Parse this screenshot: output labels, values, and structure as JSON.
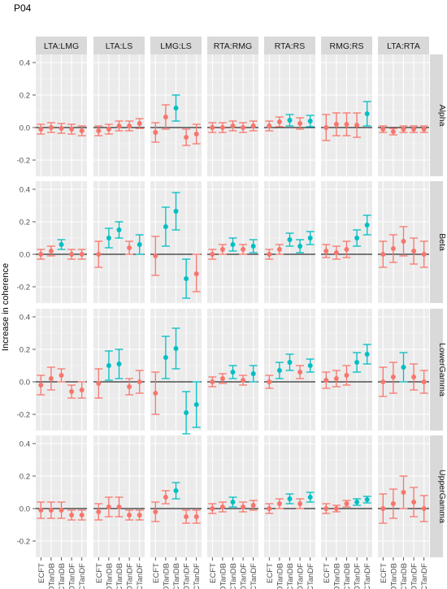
{
  "chart_data": {
    "type": "scatter",
    "title": "P04",
    "ylabel": "Increase in coherence",
    "xlabel": "",
    "ylim": [
      -0.3,
      0.45
    ],
    "yticks": [
      -0.2,
      0.0,
      0.2,
      0.4
    ],
    "ytick_labels": [
      "-0.2",
      "0.0",
      "0.2",
      "0.4"
    ],
    "categories": [
      "ECFT",
      "EOTanDB",
      "ECTanDB",
      "EOTanDF",
      "ECTanDF"
    ],
    "columns": [
      "LTA:LMG",
      "LTA:LS",
      "LMG:LS",
      "RTA:RMG",
      "RTA:RS",
      "RMG:RS",
      "LTA:RTA"
    ],
    "rows": [
      "Alpha",
      "Beta",
      "LowerGamma",
      "UpperGamma"
    ],
    "colors": {
      "not_significant": "#f8766d",
      "significant": "#00bfc4",
      "panel_bg": "#ebebeb",
      "strip_bg": "#d9d9d9",
      "zero_line": "#000000"
    },
    "grid": true,
    "legend": "none",
    "panels": [
      [
        {
          "est": [
            -0.01,
            0.0,
            -0.005,
            -0.01,
            -0.02
          ],
          "lo": [
            -0.04,
            -0.03,
            -0.035,
            -0.04,
            -0.05
          ],
          "hi": [
            0.02,
            0.03,
            0.025,
            0.02,
            0.01
          ],
          "sig": [
            0,
            0,
            0,
            0,
            0
          ]
        },
        {
          "est": [
            -0.02,
            -0.01,
            0.01,
            0.01,
            0.025
          ],
          "lo": [
            -0.05,
            -0.04,
            -0.02,
            -0.02,
            -0.005
          ],
          "hi": [
            0.01,
            0.02,
            0.04,
            0.04,
            0.055
          ],
          "sig": [
            0,
            0,
            0,
            0,
            0
          ]
        },
        {
          "est": [
            -0.03,
            0.065,
            0.12,
            -0.06,
            -0.04
          ],
          "lo": [
            -0.09,
            -0.01,
            0.04,
            -0.11,
            -0.1
          ],
          "hi": [
            0.03,
            0.14,
            0.2,
            -0.01,
            0.02
          ],
          "sig": [
            0,
            0,
            1,
            0,
            0
          ]
        },
        {
          "est": [
            0.0,
            0.0,
            0.01,
            0.0,
            0.01
          ],
          "lo": [
            -0.03,
            -0.03,
            -0.02,
            -0.03,
            -0.02
          ],
          "hi": [
            0.03,
            0.03,
            0.04,
            0.03,
            0.04
          ],
          "sig": [
            0,
            0,
            0,
            0,
            0
          ]
        },
        {
          "est": [
            0.01,
            0.035,
            0.045,
            0.025,
            0.04
          ],
          "lo": [
            -0.02,
            0.005,
            0.01,
            -0.01,
            0.005
          ],
          "hi": [
            0.04,
            0.065,
            0.08,
            0.06,
            0.075
          ],
          "sig": [
            0,
            0,
            1,
            0,
            1
          ]
        },
        {
          "est": [
            0.0,
            0.02,
            0.02,
            0.015,
            0.085
          ],
          "lo": [
            -0.08,
            -0.05,
            -0.05,
            -0.06,
            0.01
          ],
          "hi": [
            0.08,
            0.09,
            0.09,
            0.09,
            0.16
          ],
          "sig": [
            0,
            0,
            0,
            0,
            1
          ]
        },
        {
          "est": [
            -0.01,
            -0.025,
            -0.01,
            -0.01,
            -0.01
          ],
          "lo": [
            -0.03,
            -0.045,
            -0.03,
            -0.03,
            -0.03
          ],
          "hi": [
            0.01,
            -0.005,
            0.01,
            0.01,
            0.01
          ],
          "sig": [
            0,
            0,
            0,
            0,
            0
          ]
        }
      ],
      [
        {
          "est": [
            0.0,
            0.02,
            0.06,
            0.0,
            0.0
          ],
          "lo": [
            -0.03,
            -0.01,
            0.03,
            -0.03,
            -0.03
          ],
          "hi": [
            0.03,
            0.05,
            0.09,
            0.03,
            0.03
          ],
          "sig": [
            0,
            0,
            1,
            0,
            0
          ]
        },
        {
          "est": [
            0.0,
            0.1,
            0.15,
            0.04,
            0.06
          ],
          "lo": [
            -0.08,
            0.04,
            0.1,
            0.0,
            0.0
          ],
          "hi": [
            0.08,
            0.16,
            0.2,
            0.08,
            0.12
          ],
          "sig": [
            0,
            1,
            1,
            0,
            1
          ]
        },
        {
          "est": [
            -0.01,
            0.17,
            0.265,
            -0.15,
            -0.12
          ],
          "lo": [
            -0.13,
            0.05,
            0.15,
            -0.27,
            -0.23
          ],
          "hi": [
            0.11,
            0.29,
            0.38,
            -0.03,
            0.0
          ],
          "sig": [
            0,
            1,
            1,
            1,
            0
          ]
        },
        {
          "est": [
            0.0,
            0.03,
            0.06,
            0.03,
            0.05
          ],
          "lo": [
            -0.03,
            0.0,
            0.02,
            0.0,
            0.01
          ],
          "hi": [
            0.03,
            0.06,
            0.1,
            0.06,
            0.09
          ],
          "sig": [
            0,
            0,
            1,
            0,
            1
          ]
        },
        {
          "est": [
            0.0,
            0.03,
            0.09,
            0.05,
            0.1
          ],
          "lo": [
            -0.03,
            0.0,
            0.05,
            0.01,
            0.06
          ],
          "hi": [
            0.03,
            0.06,
            0.13,
            0.09,
            0.14
          ],
          "sig": [
            0,
            0,
            1,
            1,
            1
          ]
        },
        {
          "est": [
            0.02,
            0.01,
            0.03,
            0.1,
            0.18
          ],
          "lo": [
            -0.02,
            -0.03,
            -0.02,
            0.05,
            0.12
          ],
          "hi": [
            0.06,
            0.05,
            0.08,
            0.15,
            0.24
          ],
          "sig": [
            0,
            0,
            0,
            1,
            1
          ]
        },
        {
          "est": [
            0.0,
            0.035,
            0.08,
            0.02,
            0.0
          ],
          "lo": [
            -0.08,
            -0.05,
            -0.01,
            -0.06,
            -0.08
          ],
          "hi": [
            0.08,
            0.12,
            0.17,
            0.1,
            0.08
          ],
          "sig": [
            0,
            0,
            0,
            0,
            0
          ]
        }
      ],
      [
        {
          "est": [
            -0.02,
            0.02,
            0.04,
            -0.06,
            -0.05
          ],
          "lo": [
            -0.08,
            -0.05,
            0.0,
            -0.1,
            -0.1
          ],
          "hi": [
            0.04,
            0.09,
            0.08,
            -0.02,
            0.0
          ],
          "sig": [
            0,
            0,
            0,
            0,
            0
          ]
        },
        {
          "est": [
            -0.01,
            0.1,
            0.11,
            -0.03,
            0.0
          ],
          "lo": [
            -0.1,
            0.01,
            0.02,
            -0.08,
            -0.07
          ],
          "hi": [
            0.08,
            0.19,
            0.2,
            0.02,
            0.07
          ],
          "sig": [
            0,
            1,
            1,
            0,
            0
          ]
        },
        {
          "est": [
            -0.07,
            0.15,
            0.205,
            -0.19,
            -0.14
          ],
          "lo": [
            -0.2,
            0.02,
            0.08,
            -0.32,
            -0.28
          ],
          "hi": [
            0.06,
            0.28,
            0.33,
            -0.06,
            0.0
          ],
          "sig": [
            0,
            1,
            1,
            1,
            1
          ]
        },
        {
          "est": [
            0.0,
            0.02,
            0.06,
            0.01,
            0.05
          ],
          "lo": [
            -0.03,
            -0.01,
            0.02,
            -0.02,
            0.0
          ],
          "hi": [
            0.03,
            0.05,
            0.1,
            0.04,
            0.1
          ],
          "sig": [
            0,
            0,
            1,
            0,
            1
          ]
        },
        {
          "est": [
            0.0,
            0.07,
            0.12,
            0.06,
            0.1
          ],
          "lo": [
            -0.04,
            0.02,
            0.07,
            0.02,
            0.06
          ],
          "hi": [
            0.04,
            0.12,
            0.17,
            0.1,
            0.14
          ],
          "sig": [
            0,
            1,
            1,
            0,
            1
          ]
        },
        {
          "est": [
            0.01,
            0.02,
            0.04,
            0.12,
            0.17
          ],
          "lo": [
            -0.04,
            -0.03,
            -0.02,
            0.06,
            0.11
          ],
          "hi": [
            0.06,
            0.07,
            0.1,
            0.18,
            0.23
          ],
          "sig": [
            0,
            0,
            0,
            1,
            1
          ]
        },
        {
          "est": [
            0.0,
            0.03,
            0.09,
            0.03,
            0.0
          ],
          "lo": [
            -0.09,
            -0.07,
            0.0,
            -0.05,
            -0.07
          ],
          "hi": [
            0.09,
            0.12,
            0.18,
            0.11,
            0.07
          ],
          "sig": [
            0,
            0,
            1,
            0,
            0
          ]
        }
      ],
      [
        {
          "est": [
            -0.01,
            -0.01,
            -0.01,
            -0.04,
            -0.04
          ],
          "lo": [
            -0.06,
            -0.06,
            -0.06,
            -0.07,
            -0.07
          ],
          "hi": [
            0.04,
            0.04,
            0.04,
            -0.01,
            -0.01
          ],
          "sig": [
            0,
            0,
            0,
            0,
            0
          ]
        },
        {
          "est": [
            -0.02,
            0.01,
            0.01,
            -0.04,
            -0.04
          ],
          "lo": [
            -0.07,
            -0.05,
            -0.05,
            -0.07,
            -0.07
          ],
          "hi": [
            0.03,
            0.07,
            0.07,
            -0.01,
            -0.01
          ],
          "sig": [
            0,
            0,
            0,
            0,
            0
          ]
        },
        {
          "est": [
            -0.02,
            0.07,
            0.11,
            -0.05,
            -0.05
          ],
          "lo": [
            -0.08,
            0.03,
            0.06,
            -0.09,
            -0.09
          ],
          "hi": [
            0.04,
            0.11,
            0.16,
            -0.01,
            -0.01
          ],
          "sig": [
            0,
            0,
            1,
            0,
            0
          ]
        },
        {
          "est": [
            0.0,
            0.01,
            0.04,
            0.01,
            0.02
          ],
          "lo": [
            -0.03,
            -0.02,
            0.01,
            -0.02,
            -0.01
          ],
          "hi": [
            0.03,
            0.04,
            0.07,
            0.04,
            0.05
          ],
          "sig": [
            0,
            0,
            1,
            0,
            0
          ]
        },
        {
          "est": [
            0.0,
            0.03,
            0.06,
            0.03,
            0.07
          ],
          "lo": [
            -0.03,
            0.0,
            0.03,
            0.0,
            0.04
          ],
          "hi": [
            0.03,
            0.06,
            0.09,
            0.06,
            0.1
          ],
          "sig": [
            0,
            0,
            1,
            0,
            1
          ]
        },
        {
          "est": [
            0.0,
            0.0,
            0.03,
            0.04,
            0.055
          ],
          "lo": [
            -0.03,
            -0.02,
            0.01,
            0.02,
            0.035
          ],
          "hi": [
            0.03,
            0.02,
            0.05,
            0.06,
            0.075
          ],
          "sig": [
            0,
            0,
            0,
            1,
            1
          ]
        },
        {
          "est": [
            0.0,
            0.03,
            0.1,
            0.04,
            0.0
          ],
          "lo": [
            -0.09,
            -0.06,
            0.0,
            -0.05,
            -0.08
          ],
          "hi": [
            0.09,
            0.12,
            0.2,
            0.13,
            0.08
          ],
          "sig": [
            0,
            0,
            0,
            0,
            0
          ]
        }
      ]
    ]
  }
}
